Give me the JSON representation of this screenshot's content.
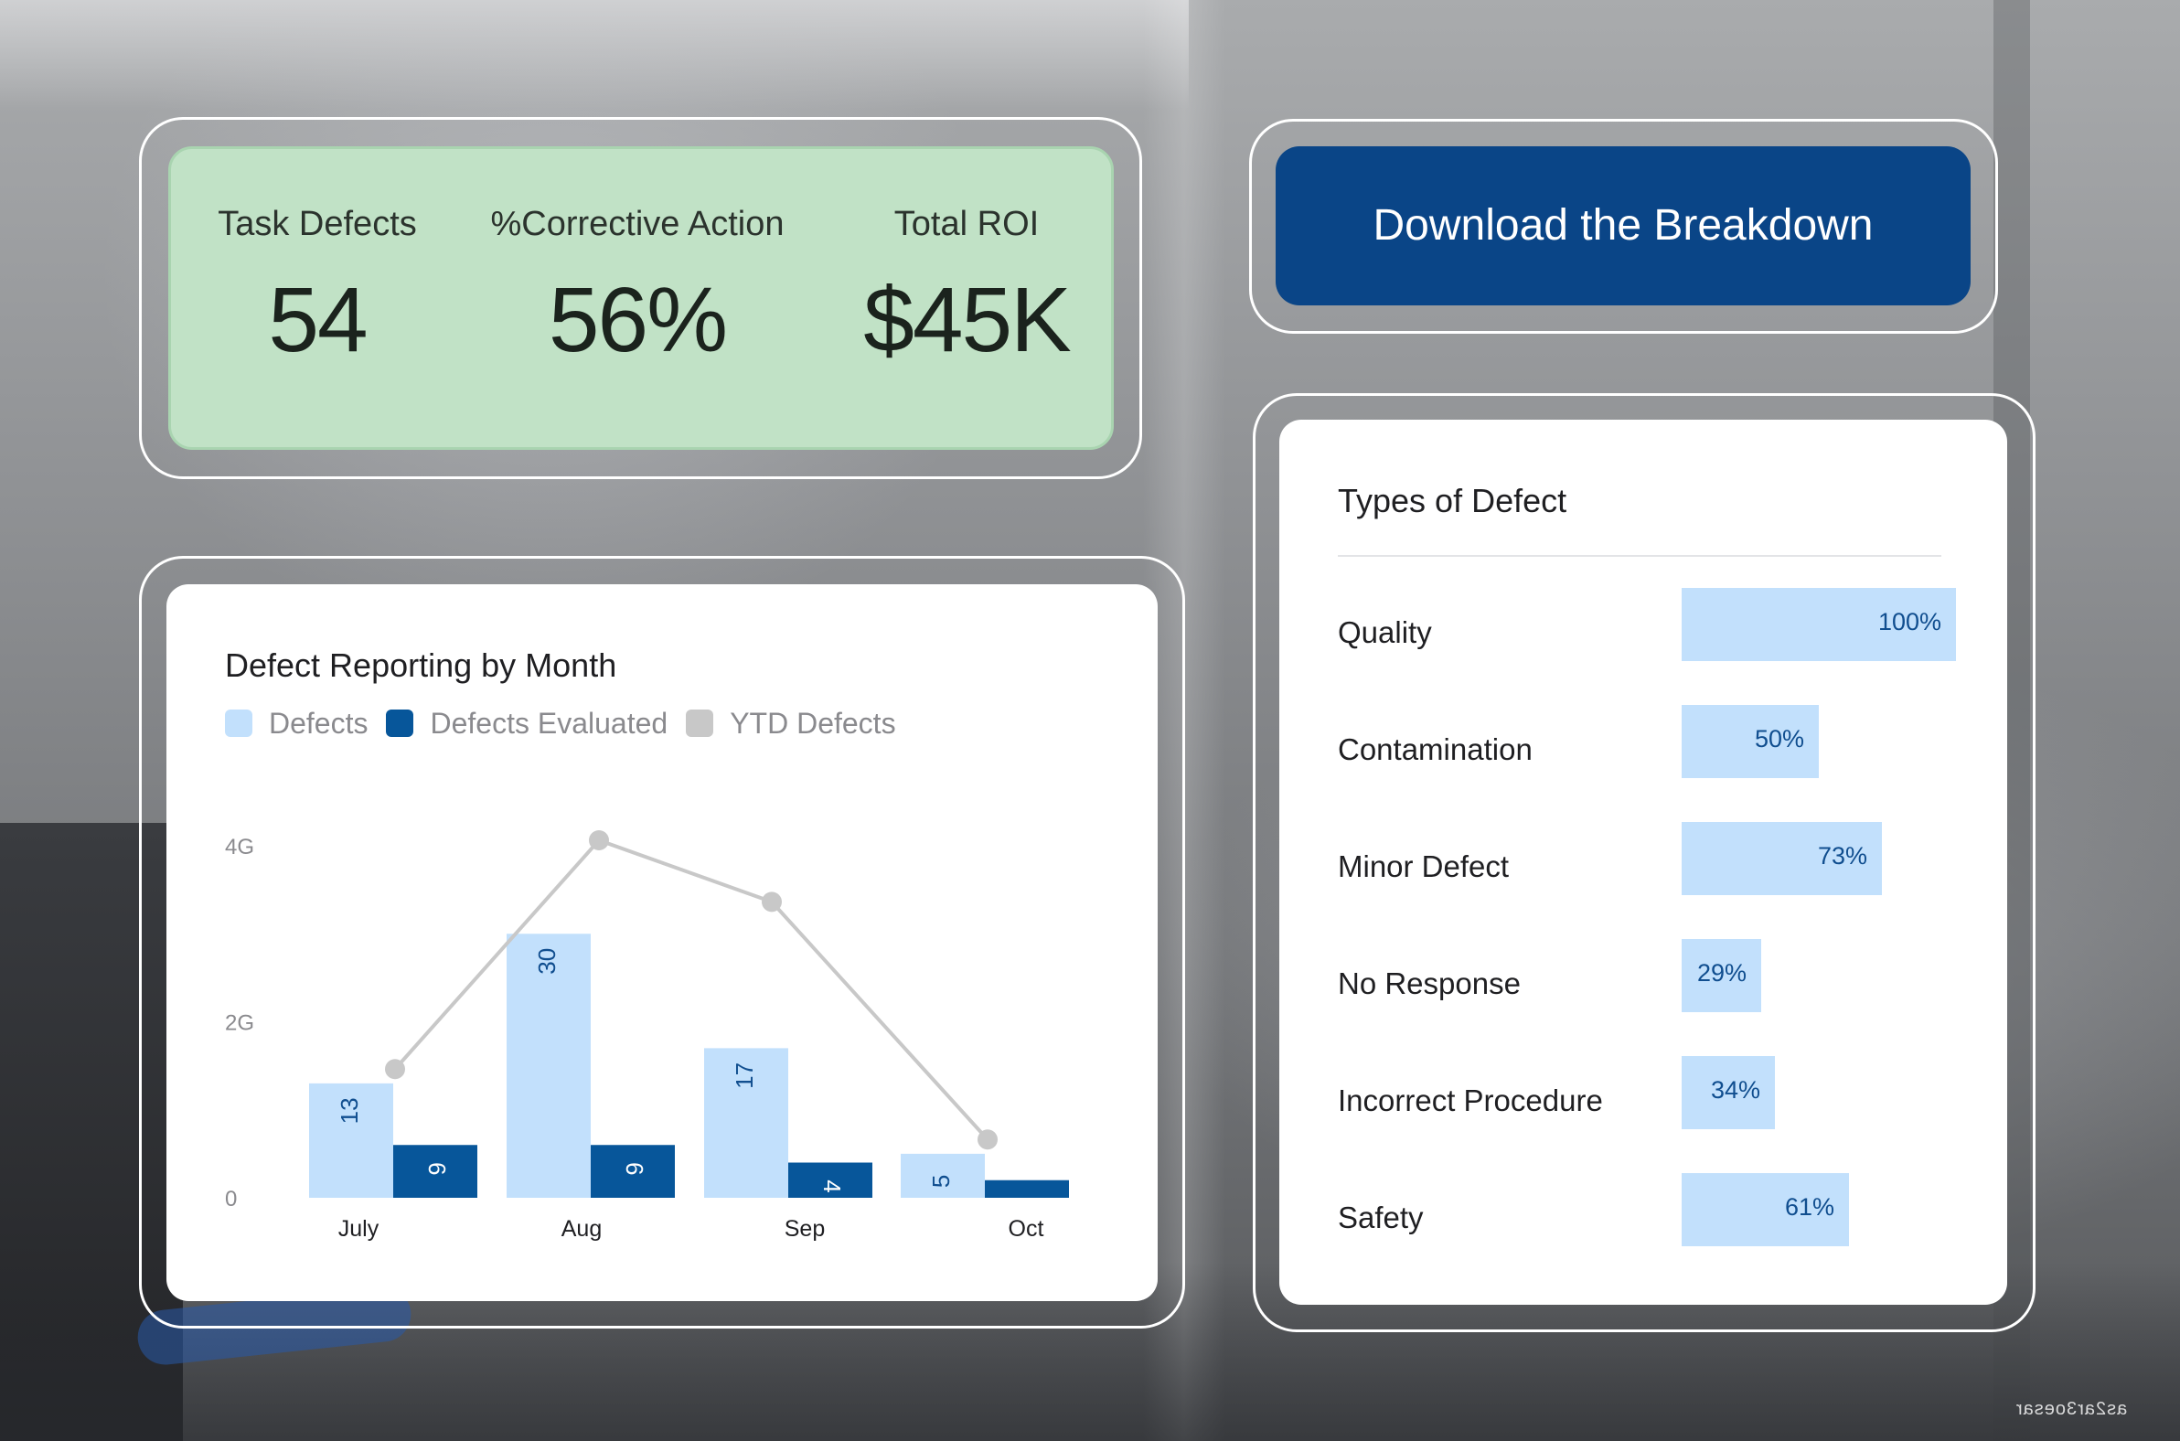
{
  "kpis": [
    {
      "label": "Task Defects",
      "value": "54"
    },
    {
      "label": "%Corrective Action",
      "value": "56%"
    },
    {
      "label": "Total ROI",
      "value": "$45K"
    }
  ],
  "download_button": {
    "label": "Download the Breakdown"
  },
  "colors": {
    "kpi_bg": "#c1e2c6",
    "button_bg": "#0a4587",
    "defects": "#c2e0fc",
    "defects_evaluated": "#07569a",
    "ytd_defects": "#c8c8c8",
    "type_bar": "#c2e0fc"
  },
  "chart_data": {
    "type": "bar",
    "title": "Defect Reporting by Month",
    "legend": [
      "Defects",
      "Defects Evaluated",
      "YTD Defects"
    ],
    "legend_position": "top-left",
    "categories": [
      "July",
      "Aug",
      "Sep",
      "Oct"
    ],
    "y_ticks": [
      "0",
      "2G",
      "4G"
    ],
    "ylim": [
      0,
      40
    ],
    "series": [
      {
        "name": "Defects",
        "kind": "bar",
        "values": [
          13,
          30,
          17,
          5
        ]
      },
      {
        "name": "Defects Evaluated",
        "kind": "bar",
        "values": [
          6,
          6,
          4,
          2
        ]
      },
      {
        "name": "YTD Defects",
        "kind": "line",
        "values": [
          14,
          40,
          33,
          6
        ]
      }
    ],
    "bar_labels": {
      "Defects": [
        "13",
        "30",
        "17",
        "5"
      ],
      "Defects Evaluated": [
        "6",
        "6",
        "4",
        ""
      ]
    },
    "grid": false
  },
  "defect_types": {
    "title": "Types of Defect",
    "items": [
      {
        "label": "Quality",
        "pct_text": "100%",
        "value": 100
      },
      {
        "label": "Contamination",
        "pct_text": "50%",
        "value": 50
      },
      {
        "label": "Minor Defect",
        "pct_text": "73%",
        "value": 73
      },
      {
        "label": "No Response",
        "pct_text": "29%",
        "value": 29
      },
      {
        "label": "Incorrect Procedure",
        "pct_text": "34%",
        "value": 34
      },
      {
        "label": "Safety",
        "pct_text": "61%",
        "value": 61
      }
    ]
  },
  "watermark": "as2ar3oesar"
}
